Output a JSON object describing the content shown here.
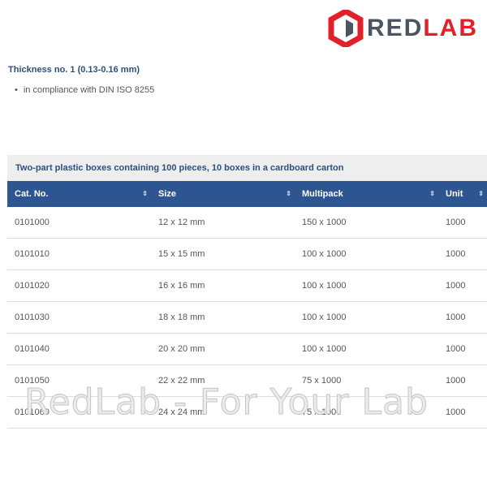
{
  "logo": {
    "text_a": "RED",
    "text_b": "LAB"
  },
  "heading": "Thickness no. 1 (0.13-0.16 mm)",
  "bullet": "in compliance with DIN ISO 8255",
  "table": {
    "caption": "Two-part plastic boxes containing 100 pieces, 10 boxes in a cardboard carton",
    "columns": [
      "Cat. No.",
      "Size",
      "Multipack",
      "Unit"
    ],
    "sort_icon": "⇕",
    "rows": [
      [
        "0101000",
        "12 x 12 mm",
        "150 x 1000",
        "1000"
      ],
      [
        "0101010",
        "15 x 15 mm",
        "100 x 1000",
        "1000"
      ],
      [
        "0101020",
        "16 x 16 mm",
        "100 x 1000",
        "1000"
      ],
      [
        "0101030",
        "18 x 18 mm",
        "100 x 1000",
        "1000"
      ],
      [
        "0101040",
        "20 x 20 mm",
        "100 x 1000",
        "1000"
      ],
      [
        "0101050",
        "22 x 22 mm",
        "75 x 1000",
        "1000"
      ],
      [
        "0101060",
        "24 x 24 mm",
        "75 x 1000",
        "1000"
      ]
    ]
  },
  "watermark": "RedLab - For Your Lab",
  "colors": {
    "header": "#2d5591",
    "brand_red": "#e3202a",
    "title": "#2c4f7c"
  }
}
